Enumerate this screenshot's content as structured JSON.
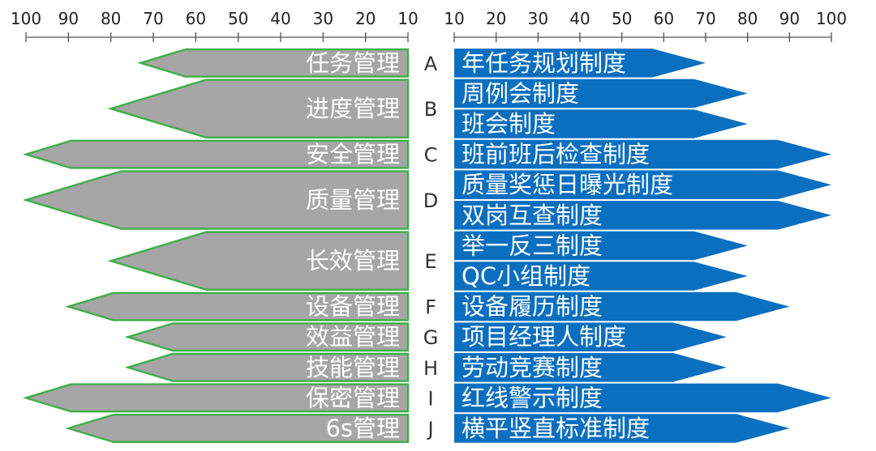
{
  "chart_data": {
    "type": "bar",
    "orientation": "horizontal-diverging",
    "axes": {
      "left": {
        "ticks": [
          "100",
          "90",
          "80",
          "70",
          "60",
          "50",
          "40",
          "30",
          "20",
          "10"
        ],
        "range": [
          10,
          100
        ]
      },
      "right": {
        "ticks": [
          "10",
          "20",
          "30",
          "40",
          "50",
          "60",
          "70",
          "80",
          "90",
          "100"
        ],
        "range": [
          10,
          100
        ]
      }
    },
    "colors": {
      "left_fill": "#a6a6a6",
      "left_border": "#3fae49",
      "right_fill": "#0b6fc0",
      "axis": "#555555"
    },
    "groups": [
      {
        "letter": "A",
        "name": "任务管理",
        "value": 73,
        "rows": 1,
        "systems": [
          {
            "name": "年任务规划制度",
            "value": 70
          }
        ]
      },
      {
        "letter": "B",
        "name": "进度管理",
        "value": 80,
        "rows": 2,
        "systems": [
          {
            "name": "周例会制度",
            "value": 80
          },
          {
            "name": "班会制度",
            "value": 80
          }
        ]
      },
      {
        "letter": "C",
        "name": "安全管理",
        "value": 100,
        "rows": 1,
        "systems": [
          {
            "name": "班前班后检查制度",
            "value": 100
          }
        ]
      },
      {
        "letter": "D",
        "name": "质量管理",
        "value": 100,
        "rows": 2,
        "systems": [
          {
            "name": "质量奖惩日曝光制度",
            "value": 100
          },
          {
            "name": "双岗互查制度",
            "value": 100
          }
        ]
      },
      {
        "letter": "E",
        "name": "长效管理",
        "value": 80,
        "rows": 2,
        "systems": [
          {
            "name": "举一反三制度",
            "value": 80
          },
          {
            "name": "QC小组制度",
            "value": 80
          }
        ]
      },
      {
        "letter": "F",
        "name": "设备管理",
        "value": 90,
        "rows": 1,
        "systems": [
          {
            "name": "设备履历制度",
            "value": 90
          }
        ]
      },
      {
        "letter": "G",
        "name": "效益管理",
        "value": 76,
        "rows": 1,
        "systems": [
          {
            "name": "项目经理人制度",
            "value": 75
          }
        ]
      },
      {
        "letter": "H",
        "name": "技能管理",
        "value": 76,
        "rows": 1,
        "systems": [
          {
            "name": "劳动竞赛制度",
            "value": 75
          }
        ]
      },
      {
        "letter": "I",
        "name": "保密管理",
        "value": 100,
        "rows": 1,
        "systems": [
          {
            "name": "红线警示制度",
            "value": 100
          }
        ]
      },
      {
        "letter": "J",
        "name": "6s管理",
        "value": 90,
        "rows": 1,
        "systems": [
          {
            "name": "横平竖直标准制度",
            "value": 90
          }
        ]
      }
    ]
  }
}
